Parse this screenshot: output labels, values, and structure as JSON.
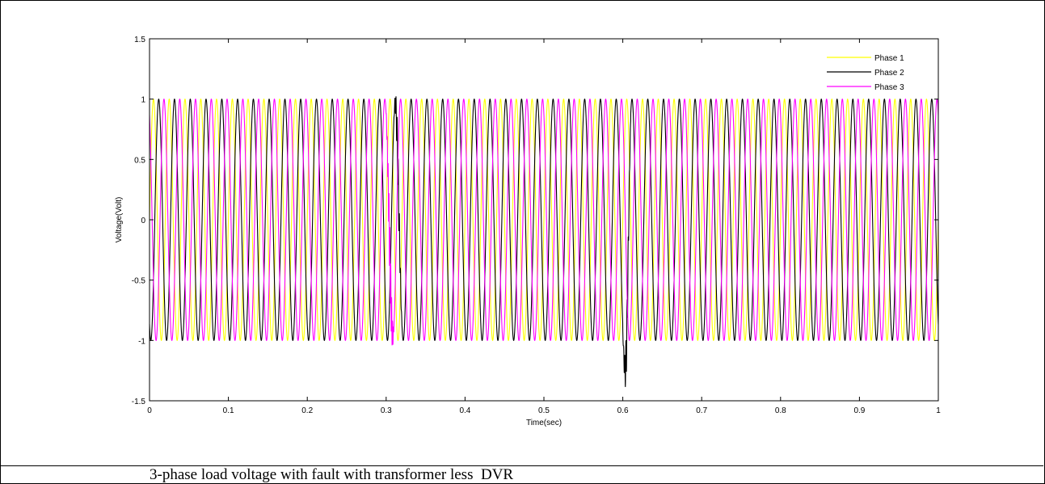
{
  "caption": "3-phase load voltage with fault with transformer less  DVR",
  "chart_data": {
    "type": "line",
    "title": "",
    "xlabel": "Time(sec)",
    "ylabel": "Voltage(Volt)",
    "xlim": [
      0,
      1
    ],
    "ylim": [
      -1.5,
      1.5
    ],
    "x_ticks": [
      "0",
      "0.1",
      "0.2",
      "0.3",
      "0.4",
      "0.5",
      "0.6",
      "0.7",
      "0.8",
      "0.9",
      "1"
    ],
    "y_ticks": [
      "1.5",
      "1",
      "0.5",
      "0",
      "-0.5",
      "-1",
      "-1.5"
    ],
    "grid": false,
    "legend_position": "top-right",
    "frequency_hz": 50,
    "amplitude": 1,
    "series": [
      {
        "name": "Phase 1",
        "color": "#ffff00",
        "phase_deg": 0
      },
      {
        "name": "Phase 2",
        "color": "#000000",
        "phase_deg": -120
      },
      {
        "name": "Phase 3",
        "color": "#ff00ff",
        "phase_deg": 120
      }
    ],
    "disturbances": [
      {
        "time": 0.3,
        "end": 0.31,
        "series": "Phase 3",
        "peak": 1.12
      },
      {
        "time": 0.31,
        "end": 0.32,
        "series": "Phase 2",
        "min": -1.1
      },
      {
        "time": 0.6,
        "end": 0.61,
        "series": "Phase 2",
        "min": -1.47
      }
    ]
  }
}
